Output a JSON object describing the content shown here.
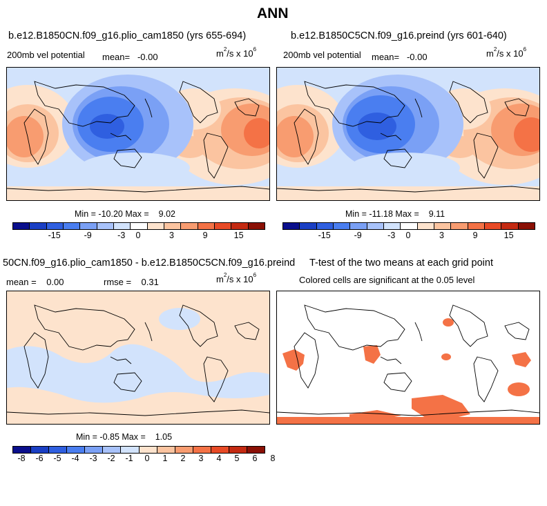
{
  "figure": {
    "title": "ANN"
  },
  "panels": {
    "p1": {
      "title": "b.e12.B1850CN.f09_g16.plio_cam1850 (yrs 655-694)",
      "variable": "200mb vel potential",
      "mean_label": "mean=",
      "mean_value": "-0.00",
      "units_prefix": "m",
      "units_exp1": "2",
      "units_mid": "/s x 10",
      "units_exp2": "6",
      "min_label": "Min =",
      "min_value": "-10.20",
      "max_label": "Max =",
      "max_value": "9.02"
    },
    "p2": {
      "title": "b.e12.B1850C5CN.f09_g16.preind (yrs 601-640)",
      "variable": "200mb vel potential",
      "mean_label": "mean=",
      "mean_value": "-0.00",
      "units_prefix": "m",
      "units_exp1": "2",
      "units_mid": "/s x 10",
      "units_exp2": "6",
      "min_label": "Min =",
      "min_value": "-11.18",
      "max_label": "Max =",
      "max_value": "9.11"
    },
    "p3": {
      "title": "50CN.f09_g16.plio_cam1850 - b.e12.B1850C5CN.f09_g16.preind",
      "mean_label": "mean =",
      "mean_value": "0.00",
      "rmse_label": "rmse =",
      "rmse_value": "0.31",
      "units_prefix": "m",
      "units_exp1": "2",
      "units_mid": "/s x 10",
      "units_exp2": "6",
      "min_label": "Min =",
      "min_value": "-0.85",
      "max_label": "Max =",
      "max_value": "1.05"
    },
    "p4": {
      "title": "T-test of the two means at each grid point",
      "subtitle": "Colored cells are significant at the 0.05 level"
    }
  },
  "colorbars": {
    "abs_ticks": [
      "-15",
      "-9",
      "-3",
      "0",
      "3",
      "9",
      "15"
    ],
    "diff_ticks": [
      "-8",
      "-6",
      "-5",
      "-4",
      "-3",
      "-2",
      "-1",
      "0",
      "1",
      "2",
      "3",
      "4",
      "5",
      "6",
      "8"
    ],
    "colors": [
      "#0a0f8c",
      "#1a3fc4",
      "#2f5fe0",
      "#4a7ef0",
      "#7aa0f5",
      "#a8c2fa",
      "#d2e3fc",
      "#ffffff",
      "#fde3cd",
      "#fbc4a0",
      "#f89c70",
      "#f47246",
      "#e84a26",
      "#c42a12",
      "#8a1005"
    ],
    "diff_colors": [
      "#0a0f8c",
      "#1a3fc4",
      "#2f5fe0",
      "#4a7ef0",
      "#7aa0f5",
      "#a8c2fa",
      "#d2e3fc",
      "#fde3cd",
      "#fbc4a0",
      "#f89c70",
      "#f47246",
      "#e84a26",
      "#c42a12",
      "#8a1005"
    ]
  },
  "chart_data": [
    {
      "type": "heatmap",
      "title": "b.e12.B1850CN.f09_g16.plio_cam1850 (yrs 655-694)",
      "variable": "200mb vel potential",
      "mean": -0.0,
      "units": "m^2/s x 10^6",
      "min": -10.2,
      "max": 9.02,
      "colorbar_ticks": [
        -15,
        -9,
        -3,
        0,
        3,
        9,
        15
      ],
      "pattern": "negative centre over the western Pacific / Maritime Continent, positive over Africa, the Atlantic and the eastern Pacific"
    },
    {
      "type": "heatmap",
      "title": "b.e12.B1850C5CN.f09_g16.preind (yrs 601-640)",
      "variable": "200mb vel potential",
      "mean": -0.0,
      "units": "m^2/s x 10^6",
      "min": -11.18,
      "max": 9.11,
      "colorbar_ticks": [
        -15,
        -9,
        -3,
        0,
        3,
        9,
        15
      ]
    },
    {
      "type": "heatmap",
      "title": "50CN.f09_g16.plio_cam1850 - b.e12.B1850C5CN.f09_g16.preind",
      "mean": 0.0,
      "rmse": 0.31,
      "units": "m^2/s x 10^6",
      "min": -0.85,
      "max": 1.05,
      "colorbar_ticks": [
        -8,
        -6,
        -5,
        -4,
        -3,
        -2,
        -1,
        0,
        1,
        2,
        3,
        4,
        5,
        6,
        8
      ]
    },
    {
      "type": "heatmap",
      "title": "T-test of the two means at each grid point",
      "subtitle": "Colored cells are significant at the 0.05 level",
      "significant_regions": [
        "southern Africa",
        "Maritime Continent",
        "eastern South America",
        "Southern Ocean / Antarctica margin",
        "North America west coast"
      ]
    }
  ]
}
